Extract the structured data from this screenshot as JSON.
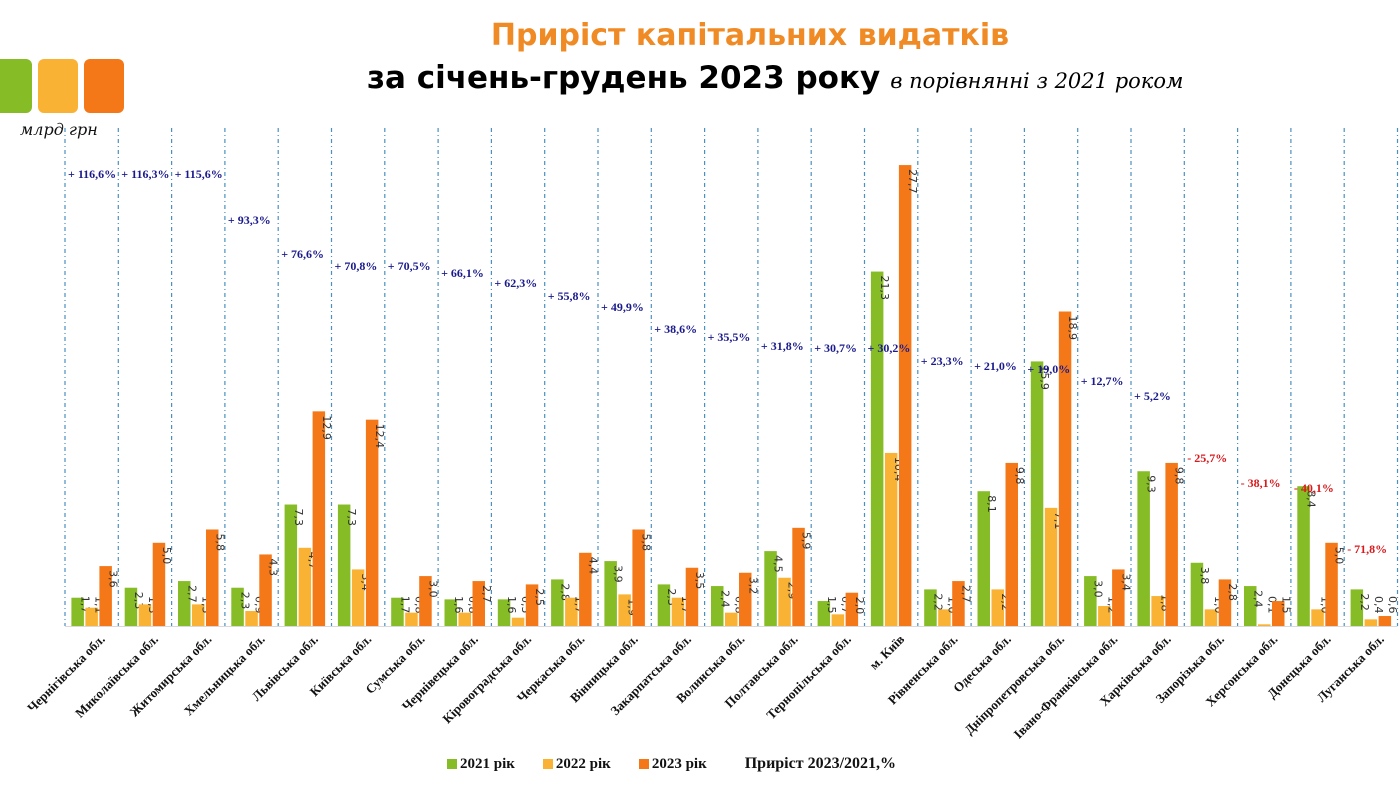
{
  "header": {
    "title": "Приріст капітальних видатків",
    "subtitle": "за січень-грудень 2023 року",
    "subtitle_note": "в порівнянні з 2021 роком",
    "unit": "млрд грн"
  },
  "colors": {
    "y2021": "#86bc25",
    "y2022": "#f9b233",
    "y2023": "#f57818",
    "positive_growth": "#1a1a8c",
    "negative_growth": "#d9191c",
    "title": "#f08a24",
    "separator": "#4a90c0"
  },
  "legend": {
    "items": [
      {
        "label": "2021 рік",
        "key": "y2021"
      },
      {
        "label": "2022 рік",
        "key": "y2022"
      },
      {
        "label": "2023 рік",
        "key": "y2023"
      }
    ],
    "growth_label": "Приріст 2023/2021,%"
  },
  "chart_data": {
    "type": "bar",
    "title": "Приріст капітальних видатків за січень-грудень 2023 року в порівнянні з 2021 роком",
    "ylabel": "млрд грн",
    "xlabel": "",
    "ylim": [
      0,
      28
    ],
    "grid": false,
    "legend_position": "bottom",
    "categories": [
      "Чернігівська обл.",
      "Миколаївська обл.",
      "Житомирська обл.",
      "Хмельницька обл.",
      "Львівська обл.",
      "Київська обл.",
      "Сумська обл.",
      "Чернівецька обл.",
      "Кіровоградська обл.",
      "Черкаська обл.",
      "Вінницька обл.",
      "Закарпатська обл.",
      "Волинська обл.",
      "Полтавська обл.",
      "Тернопільська обл.",
      "м. Київ",
      "Рівненська обл.",
      "Одеська обл.",
      "Дніпропетровська обл.",
      "Івано-Франківська обл.",
      "Харківська обл.",
      "Запорізька обл.",
      "Херсонська обл.",
      "Донецька обл.",
      "Луганська обл."
    ],
    "series": [
      {
        "name": "2021 рік",
        "key": "y2021",
        "values": [
          1.7,
          2.3,
          2.7,
          2.3,
          7.3,
          7.3,
          1.7,
          1.6,
          1.6,
          2.8,
          3.9,
          2.5,
          2.4,
          4.5,
          1.5,
          21.3,
          2.2,
          8.1,
          15.9,
          3.0,
          9.3,
          3.8,
          2.4,
          8.4,
          2.2
        ]
      },
      {
        "name": "2022 рік",
        "key": "y2022",
        "values": [
          1.1,
          1.3,
          1.3,
          0.9,
          4.7,
          3.4,
          0.8,
          0.8,
          0.5,
          1.7,
          1.9,
          1.7,
          0.8,
          2.9,
          0.7,
          10.4,
          1.0,
          2.2,
          7.1,
          1.2,
          1.8,
          1.0,
          0.1,
          1.0,
          0.4
        ]
      },
      {
        "name": "2023 рік",
        "key": "y2023",
        "values": [
          3.6,
          5.0,
          5.8,
          4.3,
          12.9,
          12.4,
          3.0,
          2.7,
          2.5,
          4.4,
          5.8,
          3.5,
          3.2,
          5.9,
          2.0,
          27.7,
          2.7,
          9.8,
          18.9,
          3.4,
          9.8,
          2.8,
          1.5,
          5.0,
          0.6
        ]
      }
    ],
    "value_labels": {
      "y2021": [
        "1,7",
        "2,3",
        "2,7",
        "2,3",
        "7,3",
        "7,3",
        "1,7",
        "1,6",
        "1,6",
        "2,8",
        "3,9",
        "2,5",
        "2,4",
        "4,5",
        "1,5",
        "21,3",
        "2,2",
        "8,1",
        "15,9",
        "3,0",
        "9,3",
        "3,8",
        "2,4",
        "8,4",
        "2,2"
      ],
      "y2022": [
        "1,1",
        "1,3",
        "1,3",
        "0,9",
        "4,7",
        "3,4",
        "0,8",
        "0,8",
        "0,5",
        "1,7",
        "1,9",
        "1,7",
        "0,8",
        "2,9",
        "0,7",
        "10,4",
        "1,0",
        "2,2",
        "7,1",
        "1,2",
        "1,8",
        "1,0",
        "0,1",
        "1,0",
        "0,4"
      ],
      "y2023": [
        "3,6",
        "5,0",
        "5,8",
        "4,3",
        "12,9",
        "12,4",
        "3,0",
        "2,7",
        "2,5",
        "4,4",
        "5,8",
        "3,5",
        "3,2",
        "5,9",
        "2,0",
        "27,7",
        "2,7",
        "9,8",
        "18,9",
        "3,4",
        "9,8",
        "2,8",
        "1,5",
        "5,0",
        "0,6"
      ]
    },
    "growth": {
      "name": "Приріст 2023/2021,%",
      "values": [
        116.6,
        116.3,
        115.6,
        93.3,
        76.6,
        70.8,
        70.5,
        66.1,
        62.3,
        55.8,
        49.9,
        38.6,
        35.5,
        31.8,
        30.7,
        30.2,
        23.3,
        21.0,
        19.0,
        12.7,
        5.2,
        -25.7,
        -38.1,
        -40.1,
        -71.8
      ],
      "labels": [
        "+ 116,6%",
        "+ 116,3%",
        "+ 115,6%",
        "+ 93,3%",
        "+ 76,6%",
        "+ 70,8%",
        "+ 70,5%",
        "+ 66,1%",
        "+ 62,3%",
        "+ 55,8%",
        "+ 49,9%",
        "+ 38,6%",
        "+ 35,5%",
        "+ 31,8%",
        "+ 30,7%",
        "+ 30,2%",
        "+ 23,3%",
        "+ 21,0%",
        "+ 19,0%",
        "+ 12,7%",
        "+ 5,2%",
        "- 25,7%",
        "- 38,1%",
        "- 40,1%",
        "- 71,8%"
      ]
    }
  }
}
